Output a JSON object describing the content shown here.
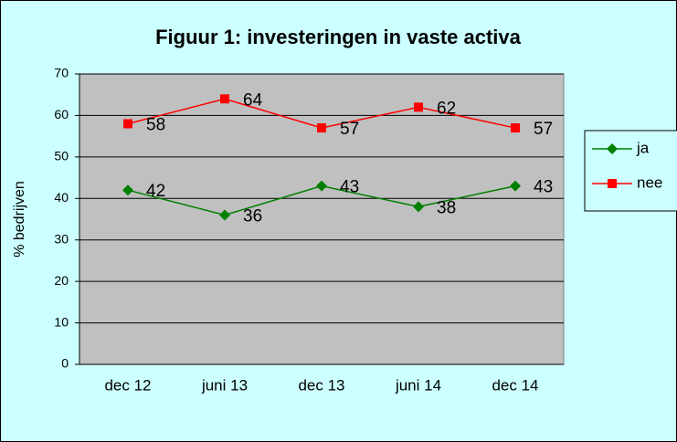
{
  "chart_data": {
    "type": "line",
    "title": "Figuur 1: investeringen in vaste activa",
    "ylabel": "% bedrijven",
    "categories": [
      "dec 12",
      "juni 13",
      "dec 13",
      "juni 14",
      "dec 14"
    ],
    "series": [
      {
        "name": "ja",
        "color": "#008000",
        "marker": "diamond",
        "values": [
          42,
          36,
          43,
          38,
          43
        ]
      },
      {
        "name": "nee",
        "color": "#ff0000",
        "marker": "square",
        "values": [
          58,
          64,
          57,
          62,
          57
        ]
      }
    ],
    "ylim": [
      0,
      70
    ],
    "yticks": [
      0,
      10,
      20,
      30,
      40,
      50,
      60,
      70
    ],
    "grid": true,
    "legend": "right"
  }
}
